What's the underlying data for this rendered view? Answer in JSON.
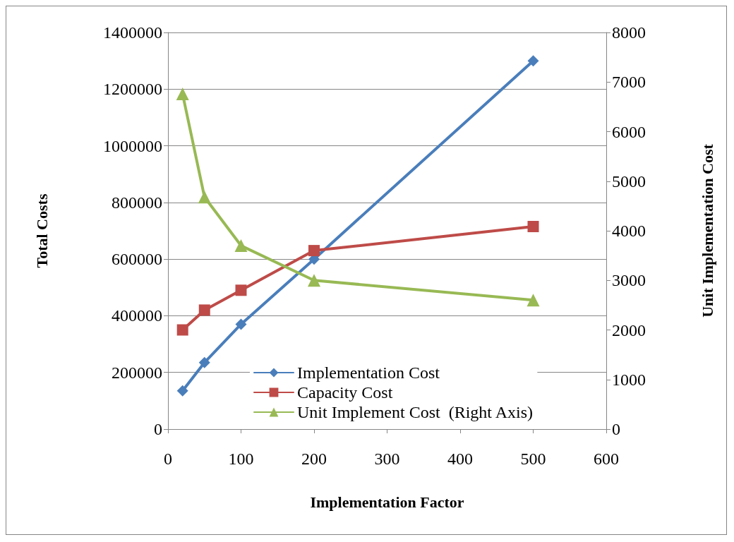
{
  "chart_data": {
    "type": "line",
    "xlabel": "Implementation Factor",
    "ylabel": "Total Costs",
    "y2label": "Unit Implementation Cost",
    "x": [
      20,
      50,
      100,
      200,
      500
    ],
    "series": [
      {
        "name": "Implementation Cost",
        "color": "#4a7ebb",
        "marker": "diamond",
        "values": [
          135000,
          235000,
          370000,
          600000,
          1300000
        ]
      },
      {
        "name": "Capacity Cost",
        "color": "#be4b48",
        "marker": "square",
        "values": [
          350000,
          420000,
          490000,
          630000,
          715000
        ]
      },
      {
        "name": "Unit Implement Cost  (Right Axis)",
        "color": "#98b954",
        "marker": "triangle",
        "axis": "y2",
        "values": [
          6760,
          4680,
          3700,
          3000,
          2600
        ]
      }
    ],
    "xlim": [
      0,
      600
    ],
    "xticks": [
      0,
      100,
      200,
      300,
      400,
      500,
      600
    ],
    "ylim": [
      0,
      1400000
    ],
    "yticks": [
      0,
      200000,
      400000,
      600000,
      800000,
      1000000,
      1200000,
      1400000
    ],
    "y2lim": [
      0,
      8000
    ],
    "y2ticks": [
      0,
      1000,
      2000,
      3000,
      4000,
      5000,
      6000,
      7000,
      8000
    ],
    "grid": "y",
    "legend": "bottom",
    "line_style": "solid"
  }
}
